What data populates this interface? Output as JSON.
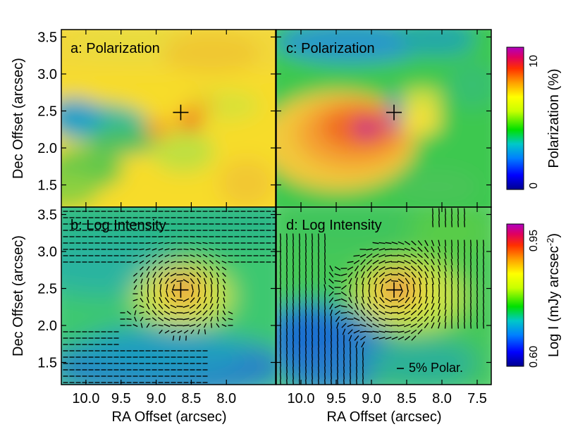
{
  "chart_data": [
    {
      "type": "heatmap",
      "panel_label": "a: Polarization",
      "quantity": "Polarization (%)",
      "xlim": [
        10.35,
        7.3
      ],
      "ylim": [
        1.2,
        3.6
      ],
      "x_ticks": [
        "10.0",
        "9.5",
        "9.0",
        "8.5",
        "8.0"
      ],
      "y_ticks": [
        "1.5",
        "2.0",
        "2.5",
        "3.0",
        "3.5"
      ],
      "marker": {
        "symbol": "+",
        "x": 8.65,
        "y": 2.48
      },
      "features": [
        {
          "kind": "band",
          "level_pct": 1.5,
          "x_from": 10.3,
          "x_to": 8.8,
          "y": 2.35
        },
        {
          "kind": "peak",
          "level_pct": 8,
          "x": 8.6,
          "y": 2.35
        },
        {
          "kind": "peak",
          "level_pct": 6.5,
          "x": 9.15,
          "y": 2.25
        }
      ]
    },
    {
      "type": "heatmap",
      "panel_label": "b: Log Intensity",
      "quantity": "Log I (mJy arcsec-2)",
      "xlim": [
        10.35,
        7.3
      ],
      "ylim": [
        1.2,
        3.6
      ],
      "x_ticks": [
        "10.0",
        "9.5",
        "9.0",
        "8.5",
        "8.0"
      ],
      "y_ticks": [
        "1.5",
        "2.0",
        "2.5",
        "3.0",
        "3.5"
      ],
      "marker": {
        "symbol": "+",
        "x": 8.65,
        "y": 2.48
      },
      "peak": {
        "x": 8.65,
        "y": 2.48,
        "log_i": 0.95
      },
      "overlay": "polarization vectors"
    },
    {
      "type": "heatmap",
      "panel_label": "c: Polarization",
      "quantity": "Polarization (%)",
      "xlim": [
        10.35,
        7.3
      ],
      "ylim": [
        1.2,
        3.6
      ],
      "x_ticks": [
        "10.0",
        "9.5",
        "9.0",
        "8.5",
        "8.0",
        "7.5"
      ],
      "y_ticks": [
        "1.5",
        "2.0",
        "2.5",
        "3.0",
        "3.5"
      ],
      "marker": {
        "symbol": "+",
        "x": 8.68,
        "y": 2.48
      },
      "features": [
        {
          "kind": "peak",
          "level_pct": 10,
          "x": 9.0,
          "y": 2.28
        },
        {
          "kind": "band",
          "level_pct": 1.5,
          "x_from": 9.4,
          "x_to": 8.0,
          "y": 3.3
        }
      ]
    },
    {
      "type": "heatmap",
      "panel_label": "d: Log Intensity",
      "quantity": "Log I (mJy arcsec-2)",
      "xlim": [
        10.35,
        7.3
      ],
      "ylim": [
        1.2,
        3.6
      ],
      "x_ticks": [
        "10.0",
        "9.5",
        "9.0",
        "8.5",
        "8.0",
        "7.5"
      ],
      "y_ticks": [
        "1.5",
        "2.0",
        "2.5",
        "3.0",
        "3.5"
      ],
      "marker": {
        "symbol": "+",
        "x": 8.68,
        "y": 2.48
      },
      "peak": {
        "x": 8.68,
        "y": 2.48,
        "log_i": 0.95
      },
      "overlay": "polarization vectors",
      "scale_bar": {
        "value_pct": 5,
        "label": "5% Polar."
      }
    }
  ],
  "axes": {
    "xlabel": "RA Offset (arcsec)",
    "ylabel": "Dec Offset (arcsec)"
  },
  "colorbars": [
    {
      "name": "polarization",
      "label": "Polarization (%)",
      "min_label": "0",
      "max_label": "10",
      "range": [
        0,
        10
      ]
    },
    {
      "name": "intensity",
      "label_main": "Log I (mJy arcsec",
      "label_sup": "-2",
      "label_close": ")",
      "min_label": "0.60",
      "max_label": "0.95",
      "range": [
        0.6,
        0.95
      ]
    }
  ],
  "colors": {
    "colormap": [
      "#000090",
      "#0000ff",
      "#0080ff",
      "#00c8c8",
      "#00e000",
      "#c8ff00",
      "#ffff00",
      "#ffa000",
      "#ff3000",
      "#e00060",
      "#b000c0"
    ],
    "vectors": "#000000",
    "marker": "#000000"
  }
}
